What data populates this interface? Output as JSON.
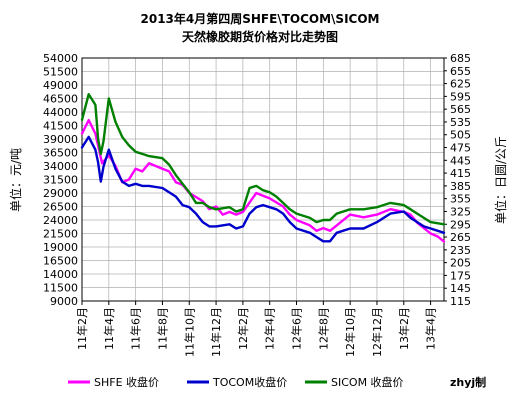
{
  "chart_data": {
    "type": "line",
    "title_line1": "2013年4月第四周SHFE\\TOCOM\\SICOM",
    "title_line2": "天然橡胶期货价格对比走势图",
    "ylabel_left": "单位：元/吨",
    "ylabel_right": "单位：日圆/公斤",
    "y_left": {
      "range": [
        9000,
        54000
      ],
      "ticks": [
        "9000",
        "11500",
        "14000",
        "16500",
        "19000",
        "21500",
        "24000",
        "26500",
        "29000",
        "31500",
        "34000",
        "36500",
        "39000",
        "41500",
        "44000",
        "46500",
        "49000",
        "51500",
        "54000"
      ]
    },
    "y_right": {
      "range": [
        115,
        685
      ],
      "ticks": [
        "115",
        "145",
        "175",
        "205",
        "235",
        "265",
        "295",
        "325",
        "355",
        "385",
        "415",
        "445",
        "475",
        "505",
        "535",
        "565",
        "595",
        "625",
        "655",
        "685"
      ]
    },
    "x_ticks": [
      "11年2月",
      "11年4月",
      "11年6月",
      "11年8月",
      "11年10月",
      "11年12月",
      "12年2月",
      "12年4月",
      "12年6月",
      "12年8月",
      "12年10月",
      "12年12月",
      "13年2月",
      "13年4月"
    ],
    "x_range": [
      0,
      27
    ],
    "grid": true,
    "legend_position": "bottom",
    "series": [
      {
        "name": "SHFE 收盘价",
        "axis": "left",
        "color": "#ff00ff",
        "values": [
          [
            0,
            40000
          ],
          [
            0.5,
            42500
          ],
          [
            1,
            40000
          ],
          [
            1.5,
            34500
          ],
          [
            2,
            36000
          ],
          [
            2.5,
            34000
          ],
          [
            3,
            31000
          ],
          [
            3.5,
            31500
          ],
          [
            4,
            33500
          ],
          [
            4.5,
            33000
          ],
          [
            5,
            34500
          ],
          [
            6,
            33500
          ],
          [
            6.5,
            33000
          ],
          [
            7,
            31000
          ],
          [
            7.5,
            30500
          ],
          [
            8,
            29000
          ],
          [
            9,
            27500
          ],
          [
            9.5,
            26000
          ],
          [
            10,
            26500
          ],
          [
            10.5,
            25000
          ],
          [
            11,
            25500
          ],
          [
            11.5,
            25000
          ],
          [
            12,
            25500
          ],
          [
            13,
            29000
          ],
          [
            13.5,
            28500
          ],
          [
            14,
            28000
          ],
          [
            15,
            26500
          ],
          [
            15.5,
            25000
          ],
          [
            16,
            24000
          ],
          [
            17,
            23000
          ],
          [
            17.5,
            22000
          ],
          [
            18,
            22500
          ],
          [
            18.5,
            22000
          ],
          [
            19,
            23000
          ],
          [
            20,
            25000
          ],
          [
            21,
            24500
          ],
          [
            22,
            25000
          ],
          [
            23,
            26000
          ],
          [
            24,
            25500
          ],
          [
            24.5,
            25000
          ],
          [
            25,
            23500
          ],
          [
            25.5,
            22500
          ],
          [
            26,
            21500
          ],
          [
            26.5,
            21000
          ],
          [
            27,
            20000
          ]
        ]
      },
      {
        "name": "TOCOM收盘价",
        "axis": "right",
        "color": "#0000cc",
        "values": [
          [
            0,
            475
          ],
          [
            0.5,
            500
          ],
          [
            1,
            470
          ],
          [
            1.2,
            440
          ],
          [
            1.4,
            395
          ],
          [
            1.6,
            430
          ],
          [
            2,
            470
          ],
          [
            2.5,
            425
          ],
          [
            3,
            395
          ],
          [
            3.5,
            385
          ],
          [
            4,
            390
          ],
          [
            4.5,
            385
          ],
          [
            5,
            385
          ],
          [
            6,
            380
          ],
          [
            6.5,
            370
          ],
          [
            7,
            360
          ],
          [
            7.5,
            340
          ],
          [
            8,
            335
          ],
          [
            8.5,
            320
          ],
          [
            9,
            300
          ],
          [
            9.5,
            290
          ],
          [
            10,
            290
          ],
          [
            11,
            295
          ],
          [
            11.5,
            285
          ],
          [
            12,
            290
          ],
          [
            12.5,
            320
          ],
          [
            13,
            335
          ],
          [
            13.5,
            340
          ],
          [
            14,
            335
          ],
          [
            14.5,
            330
          ],
          [
            15,
            320
          ],
          [
            15.5,
            300
          ],
          [
            16,
            285
          ],
          [
            17,
            275
          ],
          [
            17.5,
            265
          ],
          [
            18,
            255
          ],
          [
            18.5,
            255
          ],
          [
            19,
            275
          ],
          [
            20,
            285
          ],
          [
            21,
            285
          ],
          [
            22,
            300
          ],
          [
            23,
            320
          ],
          [
            24,
            325
          ],
          [
            24.5,
            310
          ],
          [
            25,
            300
          ],
          [
            25.5,
            290
          ],
          [
            26,
            285
          ],
          [
            27,
            275
          ]
        ]
      },
      {
        "name": "SICOM 收盘价",
        "axis": "right",
        "color": "#008000",
        "values": [
          [
            0,
            540
          ],
          [
            0.5,
            600
          ],
          [
            1,
            575
          ],
          [
            1.2,
            495
          ],
          [
            1.4,
            460
          ],
          [
            1.6,
            490
          ],
          [
            2,
            590
          ],
          [
            2.5,
            535
          ],
          [
            3,
            500
          ],
          [
            3.5,
            480
          ],
          [
            4,
            465
          ],
          [
            4.5,
            460
          ],
          [
            5,
            455
          ],
          [
            6,
            450
          ],
          [
            6.5,
            435
          ],
          [
            7,
            410
          ],
          [
            7.5,
            390
          ],
          [
            8,
            370
          ],
          [
            8.5,
            345
          ],
          [
            9,
            345
          ],
          [
            9.5,
            335
          ],
          [
            10,
            330
          ],
          [
            11,
            335
          ],
          [
            11.5,
            325
          ],
          [
            12,
            330
          ],
          [
            12.5,
            380
          ],
          [
            13,
            385
          ],
          [
            13.5,
            375
          ],
          [
            14,
            370
          ],
          [
            14.5,
            360
          ],
          [
            15,
            345
          ],
          [
            15.5,
            330
          ],
          [
            16,
            320
          ],
          [
            17,
            310
          ],
          [
            17.5,
            300
          ],
          [
            18,
            305
          ],
          [
            18.5,
            305
          ],
          [
            19,
            320
          ],
          [
            20,
            330
          ],
          [
            21,
            330
          ],
          [
            22,
            335
          ],
          [
            23,
            345
          ],
          [
            24,
            340
          ],
          [
            24.5,
            330
          ],
          [
            25,
            320
          ],
          [
            25.5,
            310
          ],
          [
            26,
            300
          ],
          [
            27,
            295
          ]
        ]
      }
    ],
    "credit": "zhyj制"
  },
  "colors": {
    "shfe": "#ff00ff",
    "tocom": "#0000cc",
    "sicom": "#008000",
    "grid": "#b0b0b0",
    "text": "#000000"
  }
}
